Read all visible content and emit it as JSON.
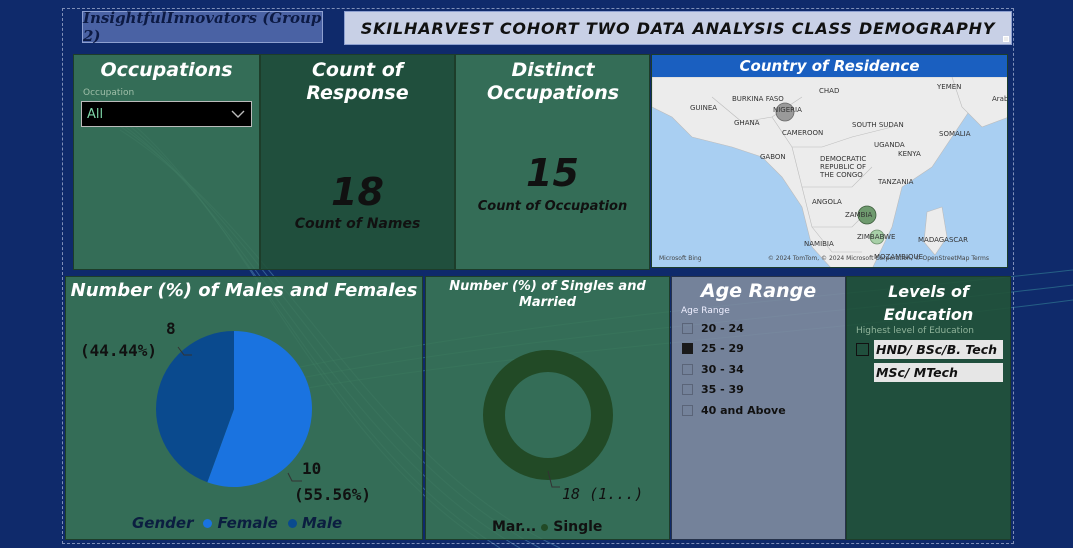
{
  "brand": "InsightfulInnovators (Group 2)",
  "banner": "SKILHARVEST COHORT TWO DATA ANALYSIS CLASS DEMOGRAPHY",
  "occupations": {
    "title": "Occupations",
    "label": "Occupation",
    "selected": "All"
  },
  "count_response": {
    "title": "Count of Response",
    "value": "18",
    "caption": "Count of Names"
  },
  "distinct_occ": {
    "title": "Distinct Occupations",
    "value": "15",
    "caption": "Count of Occupation"
  },
  "country_map": {
    "title": "Country of Residence",
    "labels": [
      "BURKINA FASO",
      "CHAD",
      "YEMEN",
      "GUINEA",
      "NIGERIA",
      "GHANA",
      "CAMEROON",
      "SOUTH SUDAN",
      "SOMALIA",
      "UGANDA",
      "GABON",
      "DEMOCRATIC REPUBLIC OF THE CONGO",
      "KENYA",
      "TANZANIA",
      "ANGOLA",
      "ZAMBIA",
      "NAMIBIA",
      "ZIMBABWE",
      "MADAGASCAR",
      "MOZAMBIQUE",
      "Arabi"
    ],
    "footer_left": "Microsoft Bing",
    "footer_right": "© 2024 TomTom, © 2024 Microsoft Corporation, © OpenStreetMap  Terms"
  },
  "gender": {
    "title": "Number (%) of Males and Females",
    "legend_title": "Gender",
    "legend": [
      {
        "name": "Female",
        "color": "#1a73e0"
      },
      {
        "name": "Male",
        "color": "#0a4a8e"
      }
    ],
    "male_label_count": "8",
    "male_label_pct": "(44.44%)",
    "female_label_count": "10",
    "female_label_pct": "(55.56%)"
  },
  "marital": {
    "title": "Number (%) of Singles and Married",
    "legend_a": "Mar...",
    "legend_b": "Single",
    "value_label": "18 (1...)"
  },
  "age": {
    "title": "Age Range",
    "label": "Age Range",
    "options": [
      "20 - 24",
      "25 - 29",
      "30 - 34",
      "35 - 39",
      "40 and Above"
    ],
    "selected_index": 1
  },
  "education": {
    "title": "Levels of Education",
    "label": "Highest level of Education",
    "options": [
      "HND/ BSc/B. Tech",
      "MSc/ MTech"
    ]
  },
  "chart_data": [
    {
      "type": "pie",
      "title": "Number (%) of Males and Females",
      "legend_title": "Gender",
      "categories": [
        "Female",
        "Male"
      ],
      "values": [
        10,
        8
      ],
      "percent": [
        55.56,
        44.44
      ],
      "colors": [
        "#1a73e0",
        "#0a4a8e"
      ]
    },
    {
      "type": "pie",
      "subtype": "donut",
      "title": "Number (%) of Singles and Married",
      "categories": [
        "Single"
      ],
      "values": [
        18
      ],
      "colors": [
        "#224a26"
      ]
    }
  ]
}
